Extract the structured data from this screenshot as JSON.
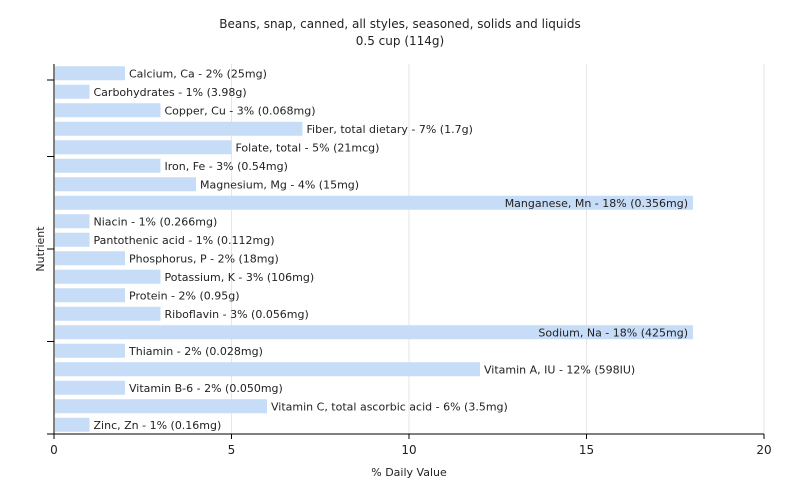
{
  "chart_data": {
    "type": "bar",
    "orientation": "horizontal",
    "title": "Beans, snap, canned, all styles, seasoned, solids and liquids",
    "subtitle": "0.5 cup (114g)",
    "xlabel": "% Daily Value",
    "ylabel": "Nutrient",
    "xlim": [
      0,
      20
    ],
    "xticks": [
      0,
      5,
      10,
      15,
      20
    ],
    "grid": true,
    "bar_color": "#c6dcf7",
    "categories": [
      "Calcium, Ca",
      "Carbohydrates",
      "Copper, Cu",
      "Fiber, total dietary",
      "Folate, total",
      "Iron, Fe",
      "Magnesium, Mg",
      "Manganese, Mn",
      "Niacin",
      "Pantothenic acid",
      "Phosphorus, P",
      "Potassium, K",
      "Protein",
      "Riboflavin",
      "Sodium, Na",
      "Thiamin",
      "Vitamin A, IU",
      "Vitamin B-6",
      "Vitamin C, total ascorbic acid",
      "Zinc, Zn"
    ],
    "values": [
      2,
      1,
      3,
      7,
      5,
      3,
      4,
      18,
      1,
      1,
      2,
      3,
      2,
      3,
      18,
      2,
      12,
      2,
      6,
      1
    ],
    "labels": [
      "Calcium, Ca - 2% (25mg)",
      "Carbohydrates - 1% (3.98g)",
      "Copper, Cu - 3% (0.068mg)",
      "Fiber, total dietary - 7% (1.7g)",
      "Folate, total - 5% (21mcg)",
      "Iron, Fe - 3% (0.54mg)",
      "Magnesium, Mg - 4% (15mg)",
      "Manganese, Mn - 18% (0.356mg)",
      "Niacin - 1% (0.266mg)",
      "Pantothenic acid - 1% (0.112mg)",
      "Phosphorus, P - 2% (18mg)",
      "Potassium, K - 3% (106mg)",
      "Protein - 2% (0.95g)",
      "Riboflavin - 3% (0.056mg)",
      "Sodium, Na - 18% (425mg)",
      "Thiamin - 2% (0.028mg)",
      "Vitamin A, IU - 12% (598IU)",
      "Vitamin B-6 - 2% (0.050mg)",
      "Vitamin C, total ascorbic acid - 6% (3.5mg)",
      "Zinc, Zn - 1% (0.16mg)"
    ]
  }
}
